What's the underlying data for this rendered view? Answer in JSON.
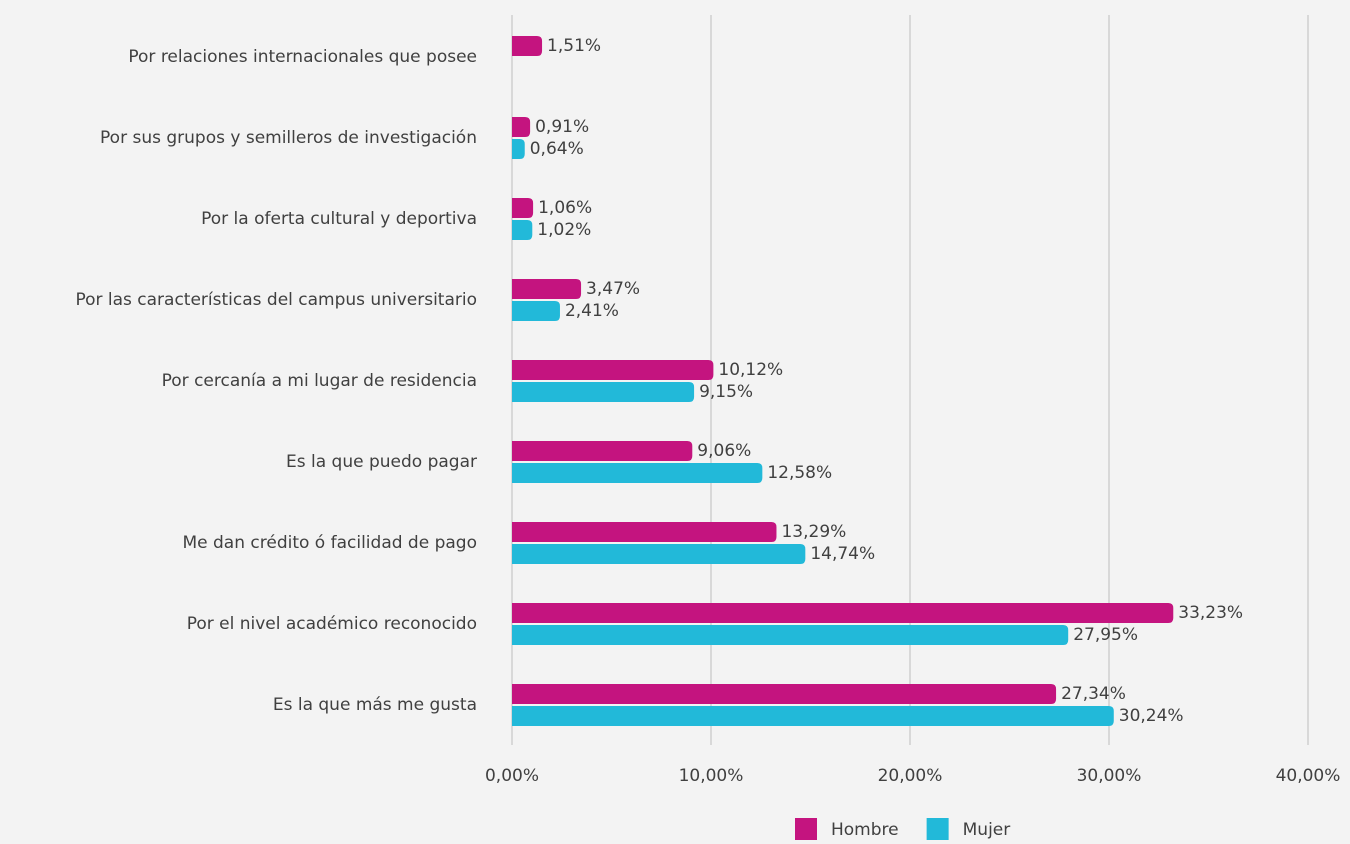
{
  "chart_data": {
    "type": "bar",
    "orientation": "horizontal",
    "categories": [
      "Por relaciones internacionales que posee",
      "Por sus grupos y semilleros de investigación",
      "Por la oferta cultural y deportiva",
      "Por las características del campus universitario",
      "Por cercanía a mi lugar de residencia",
      "Es la que puedo pagar",
      "Me dan crédito ó facilidad de pago",
      "Por el nivel académico reconocido",
      "Es la que más me gusta"
    ],
    "series": [
      {
        "name": "Hombre",
        "color": "#c4147f",
        "values": [
          1.51,
          0.91,
          1.06,
          3.47,
          10.12,
          9.06,
          13.29,
          33.23,
          27.34
        ],
        "value_labels": [
          "1,51%",
          "0,91%",
          "1,06%",
          "3,47%",
          "10,12%",
          "9,06%",
          "13,29%",
          "33,23%",
          "27,34%"
        ]
      },
      {
        "name": "Mujer",
        "color": "#22b9d9",
        "values": [
          null,
          0.64,
          1.02,
          2.41,
          9.15,
          12.58,
          14.74,
          27.95,
          30.24
        ],
        "value_labels": [
          null,
          "0,64%",
          "1,02%",
          "2,41%",
          "9,15%",
          "12,58%",
          "14,74%",
          "27,95%",
          "30,24%"
        ]
      }
    ],
    "xlim": [
      0,
      40
    ],
    "xticks": [
      {
        "value": 0,
        "label": "0,00%"
      },
      {
        "value": 10,
        "label": "10,00%"
      },
      {
        "value": 20,
        "label": "20,00%"
      },
      {
        "value": 30,
        "label": "30,00%"
      },
      {
        "value": 40,
        "label": "40,00%"
      }
    ],
    "grid": true,
    "legend": "bottom"
  }
}
